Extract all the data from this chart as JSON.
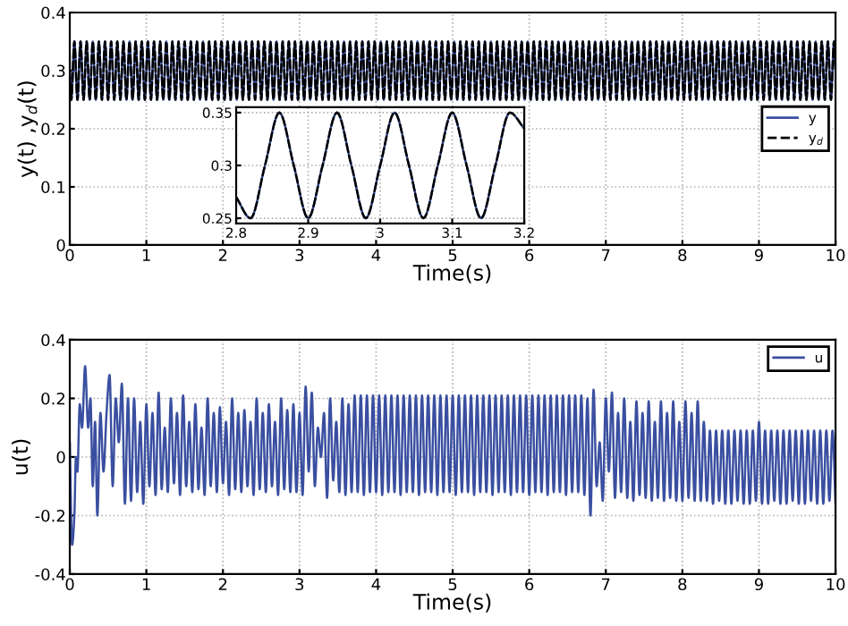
{
  "chart_data": [
    {
      "type": "line",
      "xlabel": "Time(s)",
      "ylabel": "y(t) ,y$_{d}$(t)",
      "xlim": [
        0,
        10
      ],
      "xticks": [
        0,
        1,
        2,
        3,
        4,
        5,
        6,
        7,
        8,
        9,
        10
      ],
      "ylim": [
        0,
        0.4
      ],
      "yticks": [
        0,
        0.1,
        0.2,
        0.3,
        0.4
      ],
      "grid": true,
      "legend": "right",
      "x": [
        0,
        0.02,
        0.06,
        0.1,
        0.14,
        0.18,
        0.22,
        0.26,
        0.3,
        0.34,
        0.38,
        0.42,
        0.46,
        0.5,
        0.54,
        0.58,
        0.62,
        0.66,
        0.7,
        0.74,
        0.78,
        0.82,
        0.86,
        0.9,
        0.94,
        0.98,
        1.02,
        1.06,
        1.1,
        1.14,
        1.18,
        1.22,
        1.26,
        1.3,
        1.34,
        1.38,
        1.42,
        1.46,
        1.5,
        1.54,
        1.58,
        1.62,
        1.66,
        1.7,
        1.74,
        1.78,
        1.82,
        1.86,
        1.9,
        1.94,
        1.98,
        2.02,
        2.06,
        2.1,
        2.14,
        2.18,
        2.22,
        2.26,
        2.3,
        2.34,
        2.38,
        2.42,
        2.46,
        2.5,
        2.54,
        2.58,
        2.62,
        2.66,
        2.7,
        2.74,
        2.78,
        2.82,
        2.86,
        2.9,
        2.94,
        2.98,
        3.02,
        3.06,
        3.1,
        3.14,
        3.18,
        3.22,
        3.26,
        3.3,
        3.34,
        3.38,
        3.42,
        3.46,
        3.5,
        3.54,
        3.58,
        3.62,
        3.66,
        3.7,
        3.74,
        3.78,
        3.82,
        3.86,
        3.9,
        3.94,
        3.98,
        4.02,
        4.06,
        4.1,
        4.14,
        4.18,
        4.22,
        4.26,
        4.3,
        4.34,
        4.38,
        4.42,
        4.46,
        4.5,
        4.54,
        4.58,
        4.62,
        4.66,
        4.7,
        4.74,
        4.78,
        4.82,
        4.86,
        4.9,
        4.94,
        4.98,
        5.02,
        5.06,
        5.1,
        5.14,
        5.18,
        5.22,
        5.26,
        5.3,
        5.34,
        5.38,
        5.42,
        5.46,
        5.5,
        5.54,
        5.58,
        5.62,
        5.66,
        5.7,
        5.74,
        5.78,
        5.82,
        5.86,
        5.9,
        5.94,
        5.98,
        6.02,
        6.06,
        6.1,
        6.14,
        6.18,
        6.22,
        6.26,
        6.3,
        6.34,
        6.38,
        6.42,
        6.46,
        6.5,
        6.54,
        6.58,
        6.62,
        6.66,
        6.7,
        6.74,
        6.78,
        6.82,
        6.86,
        6.9,
        6.94,
        6.98,
        7.02,
        7.06,
        7.1,
        7.14,
        7.18,
        7.22,
        7.26,
        7.3,
        7.34,
        7.38,
        7.42,
        7.46,
        7.5,
        7.54,
        7.58,
        7.62,
        7.66,
        7.7,
        7.74,
        7.78,
        7.82,
        7.86,
        7.9,
        7.94,
        7.98,
        8.02,
        8.06,
        8.1,
        8.14,
        8.18,
        8.22,
        8.26,
        8.3,
        8.34,
        8.38,
        8.42,
        8.46,
        8.5,
        8.54,
        8.58,
        8.62,
        8.66,
        8.7,
        8.74,
        8.78,
        8.82,
        8.86,
        8.9,
        8.94,
        8.98,
        9.02,
        9.06,
        9.1,
        9.14,
        9.18,
        9.22,
        9.26,
        9.3,
        9.34,
        9.38,
        9.42,
        9.46,
        9.5,
        9.54,
        9.58,
        9.62,
        9.66,
        9.7,
        9.74,
        9.78,
        9.82,
        9.86,
        9.9,
        9.94,
        9.98,
        10
      ],
      "series": [
        {
          "name": "y",
          "color": "#3a4fa0",
          "line_style": "solid",
          "values": [
            0.3,
            0.25,
            0.35,
            0.25,
            0.35,
            0.25,
            0.35,
            0.25,
            0.35,
            0.25,
            0.35,
            0.25,
            0.35,
            0.25,
            0.35,
            0.25,
            0.35,
            0.25,
            0.35,
            0.25,
            0.35,
            0.25,
            0.35,
            0.25,
            0.35,
            0.25,
            0.35,
            0.25,
            0.35,
            0.25,
            0.35,
            0.25,
            0.35,
            0.25,
            0.35,
            0.25,
            0.35,
            0.25,
            0.35,
            0.25,
            0.35,
            0.25,
            0.35,
            0.25,
            0.35,
            0.25,
            0.35,
            0.25,
            0.35,
            0.25,
            0.35,
            0.25,
            0.35,
            0.25,
            0.35,
            0.25,
            0.35,
            0.25,
            0.35,
            0.25,
            0.35,
            0.25,
            0.35,
            0.25,
            0.35,
            0.25,
            0.35,
            0.25,
            0.35,
            0.25,
            0.35,
            0.25,
            0.35,
            0.25,
            0.35,
            0.25,
            0.35,
            0.25,
            0.35,
            0.25,
            0.35,
            0.25,
            0.35,
            0.25,
            0.35,
            0.25,
            0.35,
            0.25,
            0.35,
            0.25,
            0.35,
            0.25,
            0.35,
            0.25,
            0.35,
            0.25,
            0.35,
            0.25,
            0.35,
            0.25,
            0.35,
            0.25,
            0.35,
            0.25,
            0.35,
            0.25,
            0.35,
            0.25,
            0.35,
            0.25,
            0.35,
            0.25,
            0.35,
            0.25,
            0.35,
            0.25,
            0.35,
            0.25,
            0.35,
            0.25,
            0.35,
            0.25,
            0.35,
            0.25,
            0.35,
            0.25,
            0.35,
            0.25,
            0.35,
            0.25,
            0.35,
            0.25,
            0.35,
            0.25,
            0.35,
            0.25,
            0.35,
            0.25,
            0.35,
            0.25,
            0.35,
            0.25,
            0.35,
            0.25,
            0.35,
            0.25,
            0.35,
            0.25,
            0.35,
            0.25,
            0.35,
            0.25,
            0.35,
            0.25,
            0.35,
            0.25,
            0.35,
            0.25,
            0.35,
            0.25,
            0.35,
            0.25,
            0.35,
            0.25,
            0.35,
            0.25,
            0.35,
            0.25,
            0.35,
            0.25,
            0.35,
            0.25,
            0.35,
            0.25,
            0.35,
            0.25,
            0.35,
            0.25,
            0.35,
            0.25,
            0.35,
            0.25,
            0.35,
            0.25,
            0.35,
            0.25,
            0.35,
            0.25,
            0.35,
            0.25,
            0.35,
            0.25,
            0.35,
            0.25,
            0.35,
            0.25,
            0.35,
            0.25,
            0.35,
            0.25,
            0.35,
            0.25,
            0.35,
            0.25,
            0.35,
            0.25,
            0.35,
            0.25,
            0.35,
            0.25,
            0.35,
            0.25,
            0.35,
            0.25,
            0.35,
            0.25,
            0.35,
            0.25,
            0.35,
            0.25,
            0.35,
            0.25,
            0.35,
            0.25,
            0.35,
            0.25,
            0.35,
            0.25,
            0.35,
            0.25,
            0.35,
            0.25,
            0.35,
            0.25,
            0.35,
            0.25,
            0.35,
            0.25,
            0.35,
            0.25,
            0.35,
            0.25,
            0.35,
            0.25,
            0.35,
            0.25,
            0.35,
            0.25,
            0.35,
            0.25,
            0.35,
            0.3
          ]
        },
        {
          "name": "y$_{d}$",
          "color": "#000000",
          "line_style": "dashed",
          "values": [
            0.3,
            0.25,
            0.35,
            0.25,
            0.35,
            0.25,
            0.35,
            0.25,
            0.35,
            0.25,
            0.35,
            0.25,
            0.35,
            0.25,
            0.35,
            0.25,
            0.35,
            0.25,
            0.35,
            0.25,
            0.35,
            0.25,
            0.35,
            0.25,
            0.35,
            0.25,
            0.35,
            0.25,
            0.35,
            0.25,
            0.35,
            0.25,
            0.35,
            0.25,
            0.35,
            0.25,
            0.35,
            0.25,
            0.35,
            0.25,
            0.35,
            0.25,
            0.35,
            0.25,
            0.35,
            0.25,
            0.35,
            0.25,
            0.35,
            0.25,
            0.35,
            0.25,
            0.35,
            0.25,
            0.35,
            0.25,
            0.35,
            0.25,
            0.35,
            0.25,
            0.35,
            0.25,
            0.35,
            0.25,
            0.35,
            0.25,
            0.35,
            0.25,
            0.35,
            0.25,
            0.35,
            0.25,
            0.35,
            0.25,
            0.35,
            0.25,
            0.35,
            0.25,
            0.35,
            0.25,
            0.35,
            0.25,
            0.35,
            0.25,
            0.35,
            0.25,
            0.35,
            0.25,
            0.35,
            0.25,
            0.35,
            0.25,
            0.35,
            0.25,
            0.35,
            0.25,
            0.35,
            0.25,
            0.35,
            0.25,
            0.35,
            0.25,
            0.35,
            0.25,
            0.35,
            0.25,
            0.35,
            0.25,
            0.35,
            0.25,
            0.35,
            0.25,
            0.35,
            0.25,
            0.35,
            0.25,
            0.35,
            0.25,
            0.35,
            0.25,
            0.35,
            0.25,
            0.35,
            0.25,
            0.35,
            0.25,
            0.35,
            0.25,
            0.35,
            0.25,
            0.35,
            0.25,
            0.35,
            0.25,
            0.35,
            0.25,
            0.35,
            0.25,
            0.35,
            0.25,
            0.35,
            0.25,
            0.35,
            0.25,
            0.35,
            0.25,
            0.35,
            0.25,
            0.35,
            0.25,
            0.35,
            0.25,
            0.35,
            0.25,
            0.35,
            0.25,
            0.35,
            0.25,
            0.35,
            0.25,
            0.35,
            0.25,
            0.35,
            0.25,
            0.35,
            0.25,
            0.35,
            0.25,
            0.35,
            0.25,
            0.35,
            0.25,
            0.35,
            0.25,
            0.35,
            0.25,
            0.35,
            0.25,
            0.35,
            0.25,
            0.35,
            0.25,
            0.35,
            0.25,
            0.35,
            0.25,
            0.35,
            0.25,
            0.35,
            0.25,
            0.35,
            0.25,
            0.35,
            0.25,
            0.35,
            0.25,
            0.35,
            0.25,
            0.35,
            0.25,
            0.35,
            0.25,
            0.35,
            0.25,
            0.35,
            0.25,
            0.35,
            0.25,
            0.35,
            0.25,
            0.35,
            0.25,
            0.35,
            0.25,
            0.35,
            0.25,
            0.35,
            0.25,
            0.35,
            0.25,
            0.35,
            0.25,
            0.35,
            0.25,
            0.35,
            0.25,
            0.35,
            0.25,
            0.35,
            0.25,
            0.35,
            0.25,
            0.35,
            0.25,
            0.35,
            0.25,
            0.35,
            0.25,
            0.35,
            0.25,
            0.35,
            0.25,
            0.35,
            0.25,
            0.35,
            0.25,
            0.35,
            0.25,
            0.35,
            0.25,
            0.35,
            0.3
          ]
        }
      ]
    },
    {
      "type": "line",
      "xlim": [
        2.8,
        3.2
      ],
      "xticks": [
        2.8,
        2.9,
        3,
        3.1,
        3.2
      ],
      "ylim": [
        0.245,
        0.355
      ],
      "yticks": [
        0.25,
        0.3,
        0.35
      ],
      "grid": true,
      "x": [
        2.8,
        2.82,
        2.84,
        2.86,
        2.88,
        2.9,
        2.92,
        2.94,
        2.96,
        2.98,
        3.0,
        3.02,
        3.04,
        3.06,
        3.08,
        3.1,
        3.12,
        3.14,
        3.16,
        3.18,
        3.2
      ],
      "series": [
        {
          "color": "#3a4fa0",
          "line_style": "solid",
          "values": [
            0.27,
            0.25,
            0.3,
            0.35,
            0.3,
            0.25,
            0.3,
            0.35,
            0.3,
            0.25,
            0.3,
            0.35,
            0.3,
            0.25,
            0.3,
            0.35,
            0.3,
            0.25,
            0.3,
            0.35,
            0.335
          ]
        },
        {
          "color": "#000000",
          "line_style": "dashed",
          "values": [
            0.27,
            0.25,
            0.3,
            0.35,
            0.3,
            0.25,
            0.3,
            0.35,
            0.3,
            0.25,
            0.3,
            0.35,
            0.3,
            0.25,
            0.3,
            0.35,
            0.3,
            0.25,
            0.3,
            0.35,
            0.335
          ]
        }
      ]
    },
    {
      "type": "line",
      "xlabel": "Time(s)",
      "ylabel": "u(t)",
      "xlim": [
        0,
        10
      ],
      "xticks": [
        0,
        1,
        2,
        3,
        4,
        5,
        6,
        7,
        8,
        9,
        10
      ],
      "ylim": [
        -0.4,
        0.4
      ],
      "yticks": [
        -0.4,
        -0.2,
        0,
        0.2,
        0.4
      ],
      "grid": true,
      "legend": "top right",
      "x": [
        0,
        0.03,
        0.06,
        0.08,
        0.1,
        0.13,
        0.16,
        0.2,
        0.24,
        0.27,
        0.3,
        0.33,
        0.36,
        0.4,
        0.44,
        0.48,
        0.52,
        0.56,
        0.6,
        0.64,
        0.68,
        0.72,
        0.76,
        0.8,
        0.84,
        0.88,
        0.92,
        0.96,
        1.0,
        1.04,
        1.08,
        1.12,
        1.16,
        1.2,
        1.24,
        1.28,
        1.32,
        1.36,
        1.4,
        1.44,
        1.48,
        1.52,
        1.56,
        1.6,
        1.64,
        1.68,
        1.72,
        1.76,
        1.8,
        1.84,
        1.88,
        1.92,
        1.96,
        2.0,
        2.04,
        2.08,
        2.12,
        2.16,
        2.2,
        2.24,
        2.28,
        2.32,
        2.36,
        2.4,
        2.44,
        2.48,
        2.52,
        2.56,
        2.6,
        2.64,
        2.68,
        2.72,
        2.76,
        2.8,
        2.84,
        2.88,
        2.92,
        2.96,
        3.0,
        3.04,
        3.08,
        3.12,
        3.16,
        3.2,
        3.24,
        3.28,
        3.32,
        3.36,
        3.4,
        3.44,
        3.48,
        3.52,
        3.56,
        3.6,
        3.64,
        3.68,
        3.72,
        3.76,
        3.8,
        3.84,
        3.88,
        3.92,
        3.96,
        4.0,
        4.04,
        4.08,
        4.12,
        4.16,
        4.2,
        4.24,
        4.28,
        4.32,
        4.36,
        4.4,
        4.44,
        4.48,
        4.52,
        4.56,
        4.6,
        4.64,
        4.68,
        4.72,
        4.76,
        4.8,
        4.84,
        4.88,
        4.92,
        4.96,
        5.0,
        5.04,
        5.08,
        5.12,
        5.16,
        5.2,
        5.24,
        5.28,
        5.32,
        5.36,
        5.4,
        5.44,
        5.48,
        5.52,
        5.56,
        5.6,
        5.64,
        5.68,
        5.72,
        5.76,
        5.8,
        5.84,
        5.88,
        5.92,
        5.96,
        6.0,
        6.04,
        6.08,
        6.12,
        6.16,
        6.2,
        6.24,
        6.28,
        6.32,
        6.36,
        6.4,
        6.44,
        6.48,
        6.52,
        6.56,
        6.6,
        6.64,
        6.68,
        6.72,
        6.76,
        6.8,
        6.84,
        6.88,
        6.92,
        6.96,
        7.0,
        7.04,
        7.08,
        7.12,
        7.16,
        7.2,
        7.24,
        7.28,
        7.32,
        7.36,
        7.4,
        7.44,
        7.48,
        7.52,
        7.56,
        7.6,
        7.64,
        7.68,
        7.72,
        7.76,
        7.8,
        7.84,
        7.88,
        7.92,
        7.96,
        8.0,
        8.04,
        8.08,
        8.12,
        8.16,
        8.2,
        8.24,
        8.28,
        8.32,
        8.36,
        8.4,
        8.44,
        8.48,
        8.52,
        8.56,
        8.6,
        8.64,
        8.68,
        8.72,
        8.76,
        8.8,
        8.84,
        8.88,
        8.92,
        8.96,
        9.0,
        9.04,
        9.08,
        9.12,
        9.16,
        9.2,
        9.24,
        9.28,
        9.32,
        9.36,
        9.4,
        9.44,
        9.48,
        9.52,
        9.56,
        9.6,
        9.64,
        9.68,
        9.72,
        9.76,
        9.8,
        9.84,
        9.88,
        9.92,
        9.96,
        10
      ],
      "series": [
        {
          "name": "u",
          "color": "#3a4fa0",
          "line_style": "solid",
          "values": [
            0.05,
            -0.3,
            -0.2,
            0,
            -0.05,
            0.18,
            0.1,
            0.31,
            0.1,
            0.2,
            -0.1,
            0.12,
            -0.2,
            0.15,
            -0.05,
            0.15,
            0.28,
            -0.1,
            0.2,
            0.05,
            0.25,
            -0.16,
            0.2,
            -0.15,
            0.2,
            -0.12,
            0.12,
            -0.16,
            0.18,
            -0.1,
            0.15,
            -0.13,
            0.22,
            -0.11,
            0.1,
            -0.12,
            0.2,
            -0.09,
            0.15,
            -0.13,
            0.21,
            -0.1,
            0.12,
            -0.12,
            0.18,
            -0.11,
            0.1,
            -0.13,
            0.2,
            -0.1,
            0.15,
            -0.12,
            0.17,
            -0.09,
            0.12,
            -0.13,
            0.2,
            -0.11,
            0.15,
            -0.12,
            0.16,
            -0.1,
            0.12,
            -0.13,
            0.2,
            -0.11,
            0.15,
            -0.12,
            0.18,
            -0.1,
            0.12,
            -0.13,
            0.2,
            -0.11,
            0.16,
            -0.12,
            0.18,
            -0.12,
            0.15,
            -0.13,
            0.24,
            -0.05,
            0.22,
            -0.1,
            0.1,
            0,
            0.15,
            -0.14,
            0.2,
            -0.08,
            0.12,
            -0.12,
            0.2,
            -0.13,
            0.18,
            -0.12,
            0.21,
            -0.12,
            0.21,
            -0.13,
            0.21,
            -0.12,
            0.21,
            -0.12,
            0.21,
            -0.13,
            0.21,
            -0.12,
            0.21,
            -0.12,
            0.21,
            -0.13,
            0.21,
            -0.12,
            0.21,
            -0.12,
            0.21,
            -0.13,
            0.21,
            -0.12,
            0.21,
            -0.12,
            0.21,
            -0.13,
            0.21,
            -0.12,
            0.21,
            -0.12,
            0.21,
            -0.13,
            0.21,
            -0.12,
            0.21,
            -0.12,
            0.21,
            -0.13,
            0.21,
            -0.12,
            0.21,
            -0.12,
            0.21,
            -0.13,
            0.21,
            -0.12,
            0.21,
            -0.12,
            0.21,
            -0.13,
            0.21,
            -0.12,
            0.21,
            -0.12,
            0.21,
            -0.13,
            0.21,
            -0.12,
            0.21,
            -0.12,
            0.21,
            -0.13,
            0.21,
            -0.12,
            0.21,
            -0.12,
            0.21,
            -0.13,
            0.21,
            -0.12,
            0.21,
            -0.12,
            0.21,
            -0.13,
            0.2,
            -0.2,
            0.23,
            -0.1,
            0.05,
            -0.15,
            0.2,
            -0.05,
            0.22,
            -0.14,
            0.15,
            -0.12,
            0.2,
            -0.14,
            0.12,
            -0.15,
            0.19,
            -0.13,
            0.15,
            -0.14,
            0.19,
            -0.15,
            0.12,
            -0.14,
            0.19,
            -0.15,
            0.15,
            -0.14,
            0.19,
            -0.15,
            0.12,
            -0.15,
            0.19,
            -0.14,
            0.15,
            -0.15,
            0.19,
            -0.15,
            0.12,
            -0.15,
            0.09,
            -0.16,
            0.09,
            -0.15,
            0.09,
            -0.16,
            0.09,
            -0.16,
            0.09,
            -0.15,
            0.09,
            -0.16,
            0.09,
            -0.16,
            0.09,
            -0.15,
            0.12,
            -0.16,
            0.09,
            -0.16,
            0.09,
            -0.15,
            0.09,
            -0.16,
            0.09,
            -0.16,
            0.09,
            -0.15,
            0.09,
            -0.16,
            0.09,
            -0.16,
            0.09,
            -0.15,
            0.09,
            -0.16,
            0.09,
            -0.16,
            0.09,
            -0.15,
            0.09,
            -0.16
          ]
        }
      ]
    }
  ]
}
